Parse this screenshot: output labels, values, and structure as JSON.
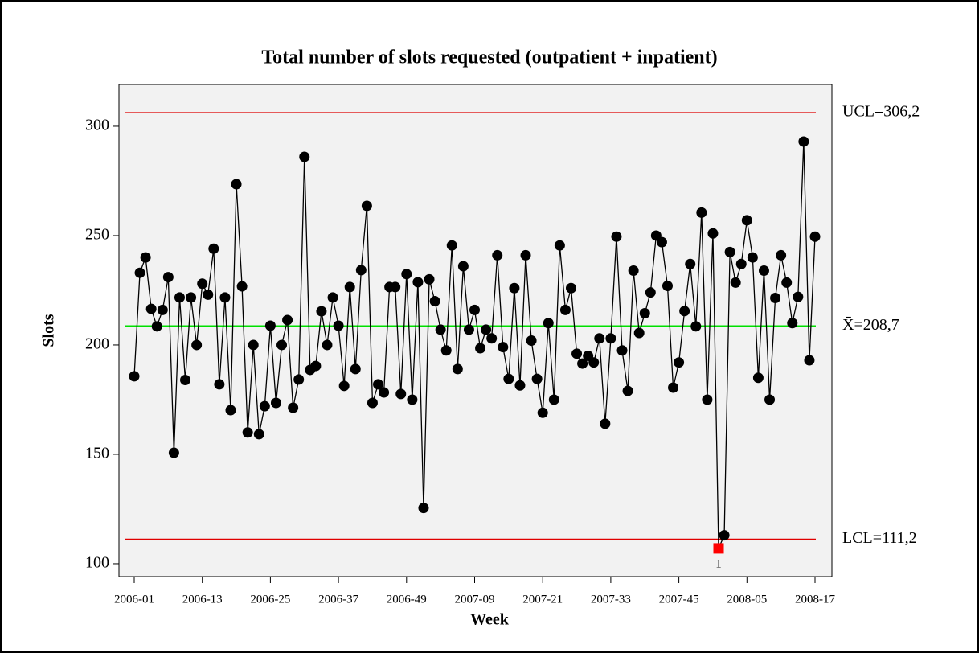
{
  "chart_data": {
    "type": "line",
    "title": "Total number of slots requested (outpatient + inpatient)",
    "x_label": "Week",
    "y_label": "Slots",
    "categories": [
      "2006-01",
      null,
      null,
      null,
      null,
      null,
      null,
      null,
      null,
      null,
      null,
      null,
      "2006-13",
      null,
      null,
      null,
      null,
      null,
      null,
      null,
      null,
      null,
      null,
      null,
      "2006-25",
      null,
      null,
      null,
      null,
      null,
      null,
      null,
      null,
      null,
      null,
      null,
      "2006-37",
      null,
      null,
      null,
      null,
      null,
      null,
      null,
      null,
      null,
      null,
      null,
      "2006-49",
      null,
      null,
      null,
      null,
      null,
      null,
      null,
      null,
      null,
      null,
      null,
      "2007-09",
      null,
      null,
      null,
      null,
      null,
      null,
      null,
      null,
      null,
      null,
      null,
      "2007-21",
      null,
      null,
      null,
      null,
      null,
      null,
      null,
      null,
      null,
      null,
      null,
      "2007-33",
      null,
      null,
      null,
      null,
      null,
      null,
      null,
      null,
      null,
      null,
      null,
      "2007-45",
      null,
      null,
      null,
      null,
      null,
      null,
      null,
      null,
      null,
      null,
      null,
      "2008-05",
      null,
      null,
      null,
      null,
      null,
      null,
      null,
      null,
      null,
      null,
      null,
      "2008-17"
    ],
    "series": [
      {
        "color": "#000000",
        "values": [
          185.7,
          233,
          240,
          216.5,
          208.5,
          216,
          231,
          150.7,
          221.7,
          184,
          221.7,
          200,
          228,
          223,
          244,
          182,
          221.7,
          170.2,
          273.5,
          226.8,
          160,
          200,
          159.2,
          172,
          208.8,
          173.5,
          200,
          211.4,
          171.3,
          184.2,
          286,
          188.6,
          190.4,
          215.4,
          200,
          221.7,
          208.8,
          181.3,
          226.5,
          189,
          234.2,
          263.6,
          173.5,
          182,
          178.3,
          226.5,
          226.5,
          177.6,
          232.4,
          175,
          228.7,
          125.5,
          230,
          220,
          207,
          197.5,
          245.5,
          189,
          236,
          207,
          216,
          198.5,
          207,
          203,
          241,
          199,
          184.5,
          226,
          181.5,
          241,
          202,
          184.5,
          169,
          210,
          175,
          245.5,
          216,
          226,
          196,
          191.5,
          195,
          192,
          203,
          164,
          203,
          249.5,
          197.5,
          179,
          234,
          205.5,
          214.5,
          224,
          250,
          247,
          227,
          180.5,
          192,
          215.5,
          237,
          208.5,
          260.5,
          175,
          251,
          107,
          113,
          242.5,
          228.5,
          237,
          257,
          240,
          185,
          234,
          175,
          221.5,
          241,
          228.5,
          210,
          222,
          293,
          193,
          249.5
        ]
      }
    ],
    "flagged": [
      {
        "index": 103,
        "label": "1",
        "color": "#ff0000"
      }
    ],
    "control_limits": [
      {
        "label": "UCL=306,2",
        "value": 306.2,
        "color": "#e00000"
      },
      {
        "label": "X̄=208,7",
        "value": 208.7,
        "color": "#00e000"
      },
      {
        "label": "LCL=111,2",
        "value": 111.2,
        "color": "#e00000"
      }
    ],
    "ylim": [
      94.1,
      319.1
    ],
    "yticks": [
      100,
      150,
      200,
      250,
      300
    ]
  }
}
